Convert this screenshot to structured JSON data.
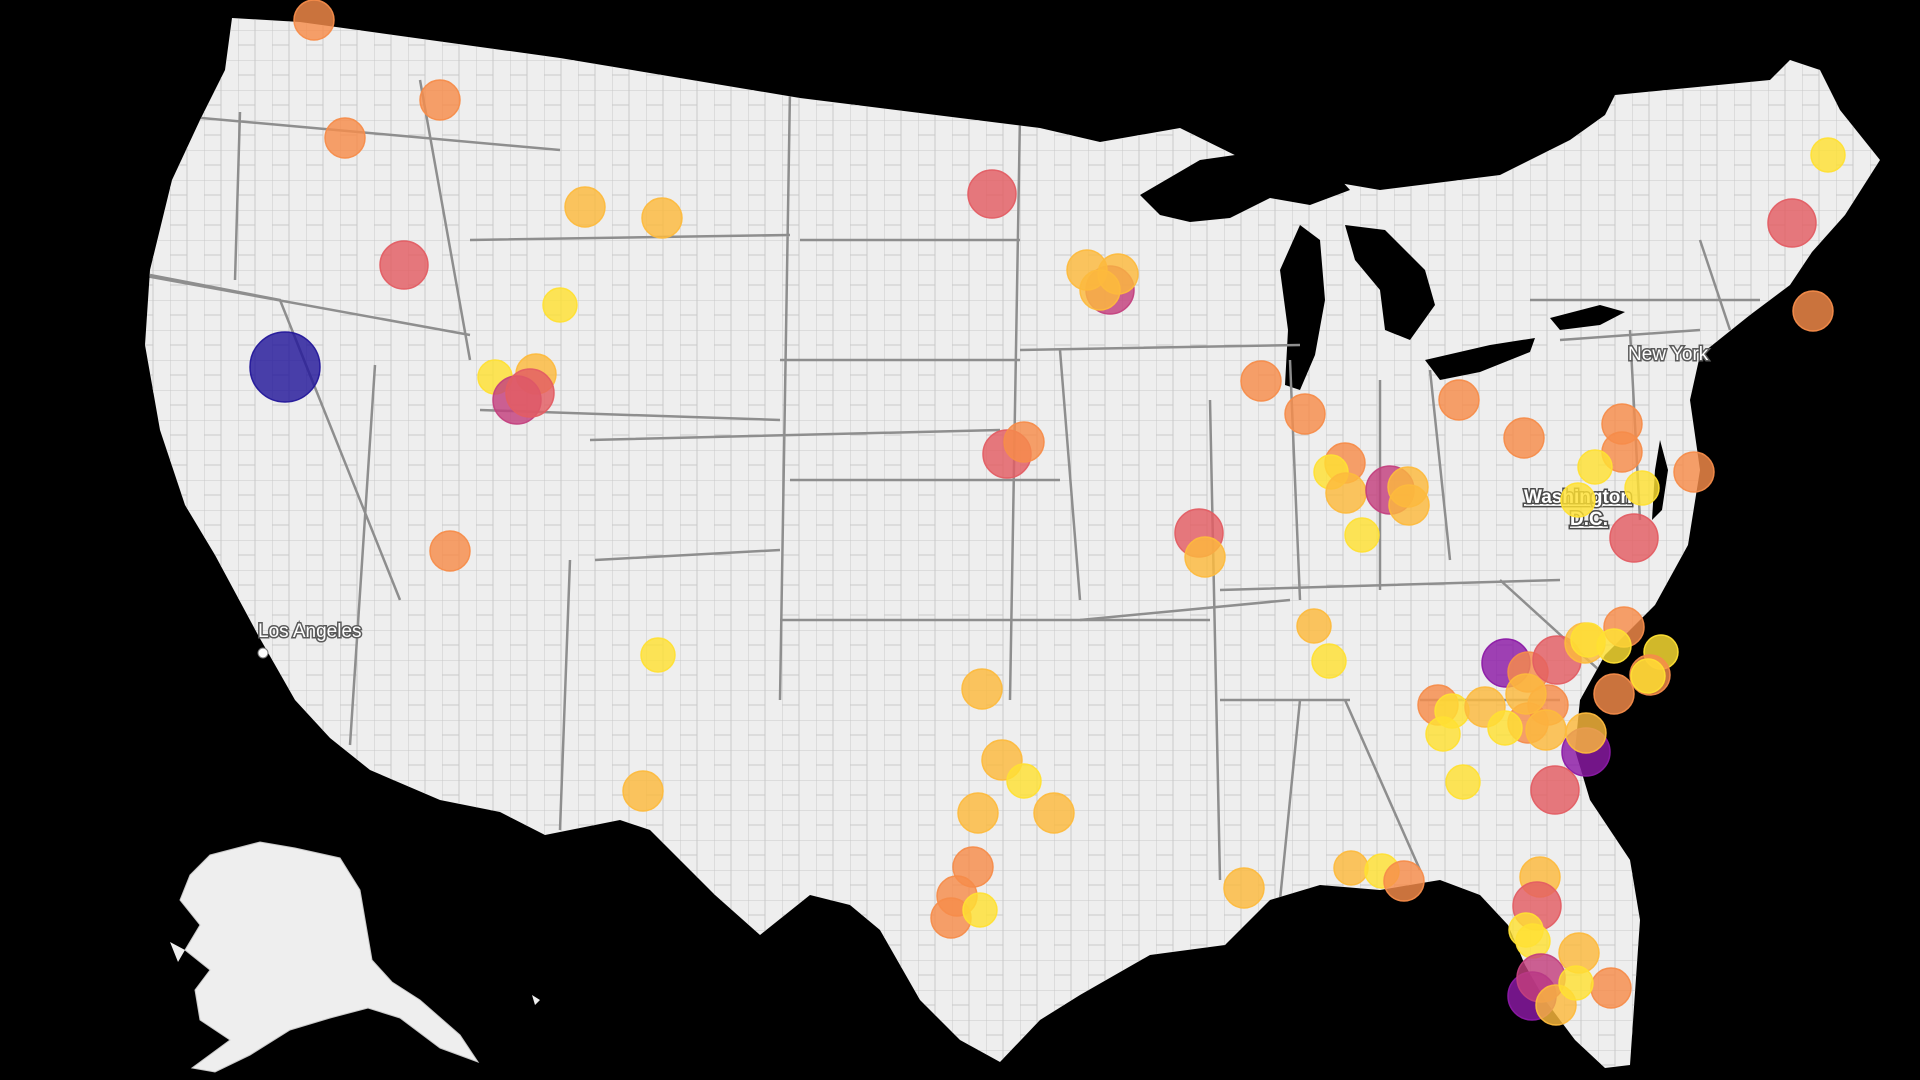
{
  "map": {
    "labels": {
      "new_york": "New York",
      "washington_line1": "Washington",
      "washington_line2": "D.C.",
      "los_angeles": "Los Angeles"
    },
    "colors": {
      "background": "#000000",
      "land": "#eeeeee",
      "county_border": "#c9c9c9",
      "state_border": "#8e8e8e",
      "scale": [
        "#ffe033",
        "#fdba3d",
        "#f68c4a",
        "#e35d63",
        "#c3407e",
        "#8c1aa6",
        "#23179a"
      ]
    }
  }
}
